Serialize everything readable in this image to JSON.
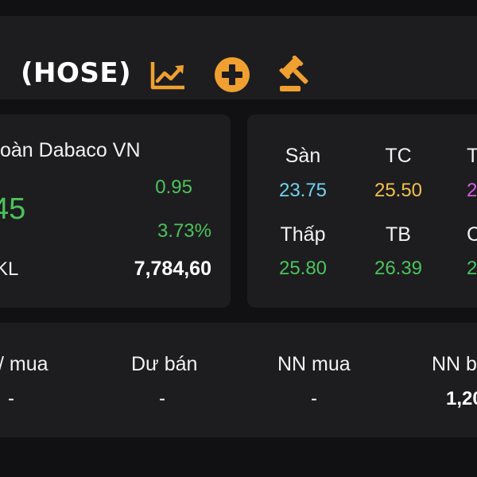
{
  "header": {
    "exchange": "(HOSE)",
    "icons": [
      "back-chevron-icon",
      "line-chart-icon",
      "add-circle-icon",
      "gavel-icon"
    ],
    "accent_color": "#f0a030"
  },
  "summary": {
    "company_name": "oàn Dabaco VN",
    "price": "45",
    "change": "0.95",
    "change_percent": "3.73%",
    "volume_label": "KL",
    "volume_value": "7,784,60"
  },
  "stats": {
    "san_label": "Sàn",
    "san_value": "23.75",
    "tc_label": "TC",
    "tc_value": "25.50",
    "tran_label": "T",
    "tran_value": "2",
    "thap_label": "Thấp",
    "thap_value": "25.80",
    "tb_label": "TB",
    "tb_value": "26.39",
    "cao_label": "C",
    "cao_value": "2"
  },
  "order_flow": {
    "du_mua_label": "/ mua",
    "du_mua_value": "-",
    "du_ban_label": "Dư bán",
    "du_ban_value": "-",
    "nn_mua_label": "NN mua",
    "nn_mua_value": "-",
    "nn_ban_label": "NN b",
    "nn_ban_value": "1,20"
  },
  "colors": {
    "up": "#4cc35a",
    "floor": "#6fd3f0",
    "reference": "#f2c14a",
    "ceiling": "#d35ee0",
    "background": "#111113",
    "card": "#1d1d20"
  }
}
